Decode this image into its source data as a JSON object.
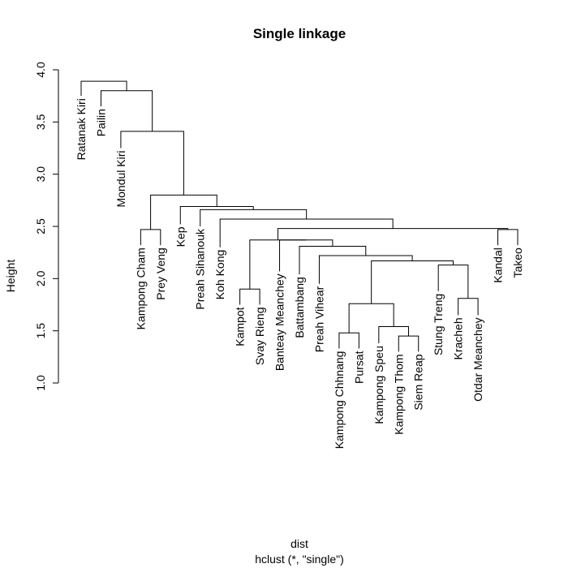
{
  "chart_data": {
    "type": "dendrogram",
    "title": "Single linkage",
    "xlabel": "dist",
    "sublabel": "hclust (*, \"single\")",
    "ylabel": "Height",
    "ylim": [
      1.0,
      4.0
    ],
    "yticks": [
      "1.0",
      "1.5",
      "2.0",
      "2.5",
      "3.0",
      "3.5",
      "4.0"
    ],
    "leaves": [
      {
        "name": "Ratanak Kiri",
        "y": 3.75
      },
      {
        "name": "Pailin",
        "y": 3.65
      },
      {
        "name": "Mondul Kiri",
        "y": 3.25
      },
      {
        "name": "Kampong Cham",
        "y": 2.32
      },
      {
        "name": "Prey Veng",
        "y": 2.32
      },
      {
        "name": "Kep",
        "y": 2.52
      },
      {
        "name": "Preah Sihanouk",
        "y": 2.5
      },
      {
        "name": "Koh Kong",
        "y": 2.3
      },
      {
        "name": "Kampot",
        "y": 1.75
      },
      {
        "name": "Svay Rieng",
        "y": 1.75
      },
      {
        "name": "Banteay Meanchey",
        "y": 2.07
      },
      {
        "name": "Battambang",
        "y": 2.04
      },
      {
        "name": "Preah Vihear",
        "y": 1.95
      },
      {
        "name": "Kampong Chhnang",
        "y": 1.33
      },
      {
        "name": "Pursat",
        "y": 1.33
      },
      {
        "name": "Kampong Speu",
        "y": 1.38
      },
      {
        "name": "Kampong Thom",
        "y": 1.3
      },
      {
        "name": "Siem Reap",
        "y": 1.3
      },
      {
        "name": "Stung Treng",
        "y": 1.88
      },
      {
        "name": "Kracheh",
        "y": 1.65
      },
      {
        "name": "Otdar Meanchey",
        "y": 1.65
      },
      {
        "name": "Kandal",
        "y": 2.32
      },
      {
        "name": "Takeo",
        "y": 2.32
      }
    ],
    "merges": [
      [
        -14,
        -15,
        1.48
      ],
      [
        -17,
        -18,
        1.45
      ],
      [
        -16,
        2,
        1.54
      ],
      [
        1,
        3,
        1.76
      ],
      [
        -20,
        -21,
        1.81
      ],
      [
        -9,
        -10,
        1.9
      ],
      [
        -19,
        5,
        2.13
      ],
      [
        4,
        7,
        2.17
      ],
      [
        -13,
        8,
        2.22
      ],
      [
        -12,
        9,
        2.31
      ],
      [
        -11,
        10,
        2.37
      ],
      [
        6,
        11,
        2.37
      ],
      [
        -4,
        -5,
        2.47
      ],
      [
        -22,
        -23,
        2.47
      ],
      [
        12,
        14,
        2.48
      ],
      [
        -8,
        15,
        2.57
      ],
      [
        -7,
        16,
        2.66
      ],
      [
        -6,
        17,
        2.69
      ],
      [
        13,
        18,
        2.8
      ],
      [
        -3,
        19,
        3.41
      ],
      [
        -2,
        20,
        3.8
      ],
      [
        -1,
        21,
        3.89
      ]
    ]
  }
}
